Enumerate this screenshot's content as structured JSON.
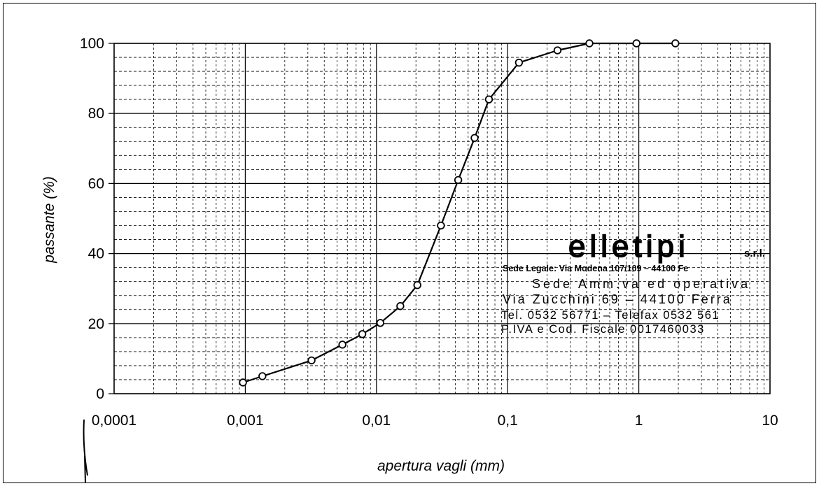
{
  "chart_data": {
    "type": "line",
    "xlabel": "apertura vagli (mm)",
    "ylabel": "passante (%)",
    "x_scale": "log",
    "xlim": [
      0.0001,
      10
    ],
    "ylim": [
      0,
      100
    ],
    "grid": true,
    "x_tick_labels": [
      "0,0001",
      "0,001",
      "0,01",
      "0,1",
      "1",
      "10"
    ],
    "y_tick_labels": [
      "0",
      "20",
      "40",
      "60",
      "80",
      "100"
    ],
    "series": [
      {
        "x": [
          0.00096,
          0.00135,
          0.0032,
          0.0055,
          0.0078,
          0.0107,
          0.0152,
          0.0205,
          0.031,
          0.042,
          0.056,
          0.072,
          0.122,
          0.24,
          0.42,
          0.96,
          1.9
        ],
        "y": [
          3.2,
          5,
          9.5,
          14,
          17,
          20.2,
          25,
          31,
          48,
          61,
          73,
          84,
          94.5,
          98,
          100,
          100,
          100
        ]
      }
    ]
  },
  "stamp": {
    "name": "elletipi",
    "suffix": "s.r.l.",
    "lines": [
      "Sede Legale: Via Modena 107/109 – 44100 Fe",
      "Sede Amm.va ed operativa",
      "Via Zucchini 69 – 44100 Ferra",
      "Tel. 0532 56771 – Telefax 0532 561",
      "P.IVA e Cod. Fiscale 0017460033"
    ]
  },
  "colors": {
    "line": "#000000",
    "grid": "#000000",
    "background": "#ffffff"
  }
}
